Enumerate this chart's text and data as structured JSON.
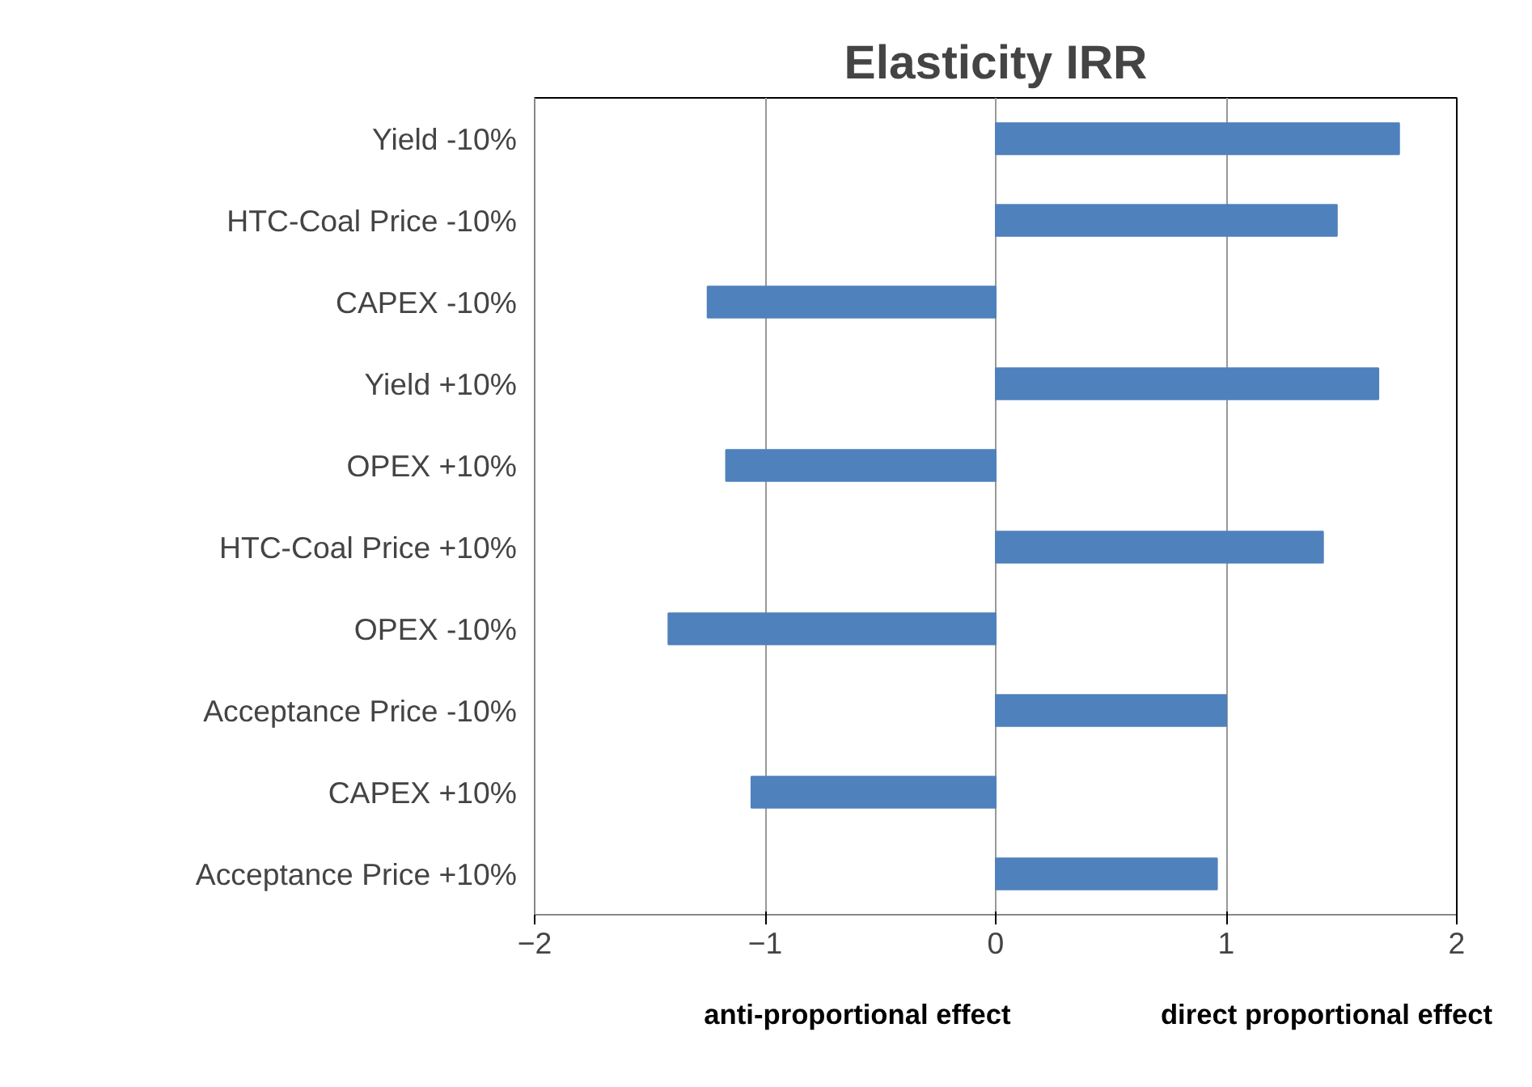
{
  "chart_data": {
    "type": "bar",
    "orientation": "horizontal",
    "title": "Elasticity IRR",
    "categories": [
      "Yield -10%",
      "HTC-Coal Price -10%",
      "CAPEX -10%",
      "Yield +10%",
      "OPEX +10%",
      "HTC-Coal Price +10%",
      "OPEX -10%",
      "Acceptance Price -10%",
      "CAPEX +10%",
      "Acceptance Price +10%"
    ],
    "values": [
      1.75,
      1.48,
      -1.25,
      1.66,
      -1.17,
      1.42,
      -1.42,
      1.0,
      -1.06,
      0.96
    ],
    "color": "#4f81bd",
    "xlim": [
      -2,
      2
    ],
    "xticks": [
      -2,
      -1,
      0,
      1,
      2
    ],
    "grid": "x",
    "annotations": [
      "anti-proportional effect",
      "direct proportional effect"
    ]
  }
}
